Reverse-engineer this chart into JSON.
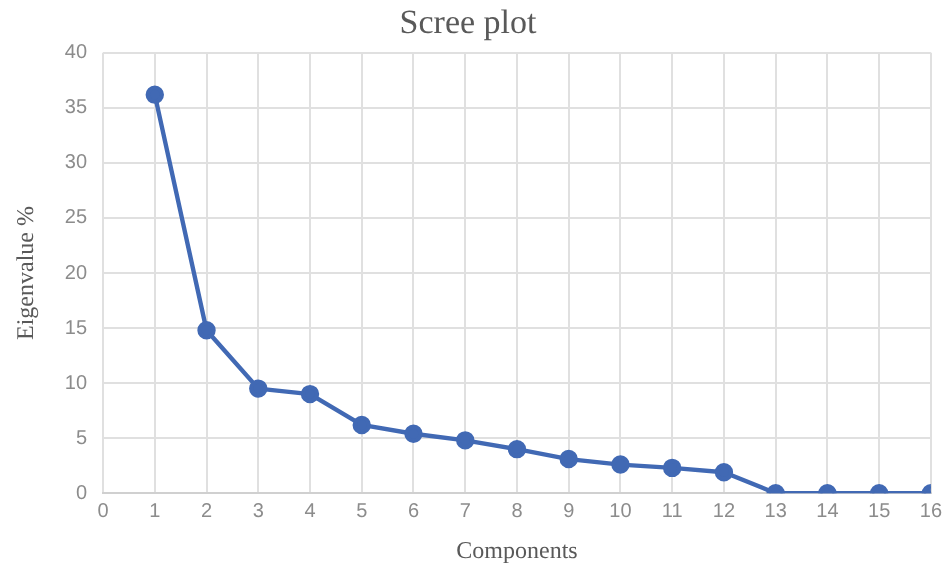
{
  "chart_data": {
    "type": "line",
    "title": "Scree plot",
    "xlabel": "Components",
    "ylabel": "Eigenvalue %",
    "x": [
      1,
      2,
      3,
      4,
      5,
      6,
      7,
      8,
      9,
      10,
      11,
      12,
      13,
      14,
      15,
      16
    ],
    "series": [
      {
        "color": "#4169b4",
        "values": [
          36.2,
          14.8,
          9.5,
          9.0,
          6.2,
          5.4,
          4.8,
          4.0,
          3.1,
          2.6,
          2.3,
          1.9,
          0,
          0,
          0,
          0
        ]
      }
    ],
    "xlim": [
      0,
      16
    ],
    "xticks": [
      0,
      1,
      2,
      3,
      4,
      5,
      6,
      7,
      8,
      9,
      10,
      11,
      12,
      13,
      14,
      15,
      16
    ],
    "ylim": [
      0,
      40
    ],
    "yticks": [
      0,
      5,
      10,
      15,
      20,
      25,
      30,
      35,
      40
    ],
    "grid": true,
    "legend": false,
    "marker": "circle",
    "line_style": "solid"
  }
}
